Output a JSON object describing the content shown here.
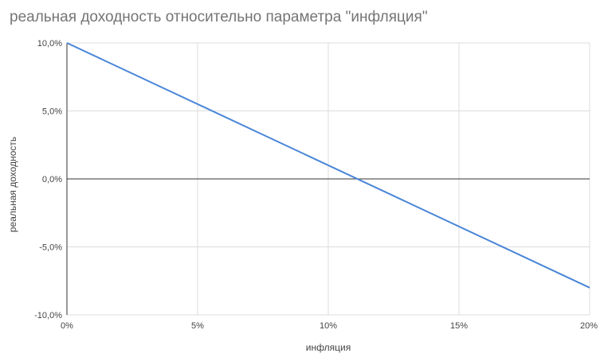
{
  "chart_data": {
    "type": "line",
    "title": "реальная доходность относительно параметра \"инфляция\"",
    "xlabel": "инфляция",
    "ylabel": "реальная доходность",
    "xlim": [
      0,
      20
    ],
    "ylim": [
      -10,
      10
    ],
    "x_ticks": [
      0,
      5,
      10,
      15,
      20
    ],
    "x_tick_labels": [
      "0%",
      "5%",
      "10%",
      "15%",
      "20%"
    ],
    "y_ticks": [
      10,
      5,
      0,
      -5,
      -10
    ],
    "y_tick_labels": [
      "10,0%",
      "5,0%",
      "0,0%",
      "-5,0%",
      "-10,0%"
    ],
    "grid": true,
    "legend": "none",
    "series": [
      {
        "color": "#4a86d8",
        "points": [
          {
            "x": 0,
            "y": 10.0
          },
          {
            "x": 20,
            "y": -8.0
          }
        ]
      }
    ]
  }
}
